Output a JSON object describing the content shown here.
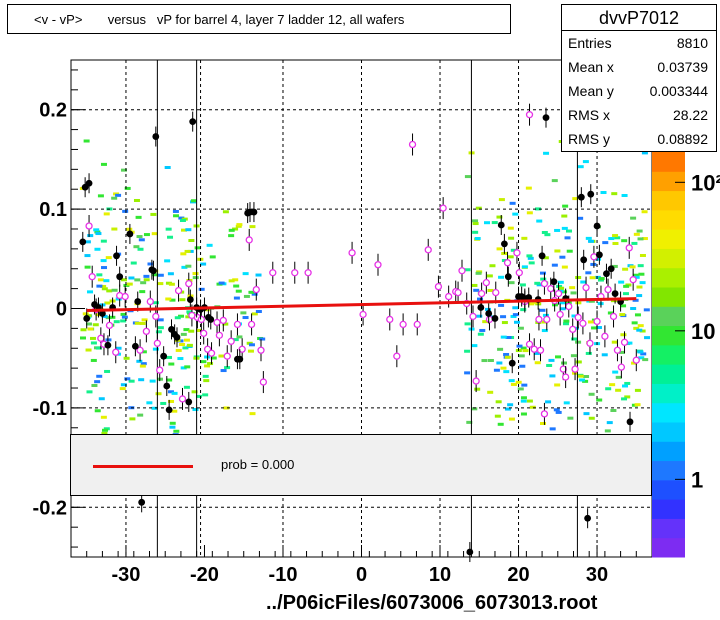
{
  "title": "<v - vP>       versus   vP for barrel 4, layer 7 ladder 12, all wafers",
  "stats": {
    "name": "dvvP7012",
    "rows": [
      {
        "label": "Entries",
        "value": "8810"
      },
      {
        "label": "Mean x",
        "value": "0.03739"
      },
      {
        "label": "Mean y",
        "value": "0.003344"
      },
      {
        "label": "RMS x",
        "value": "28.22"
      },
      {
        "label": "RMS y",
        "value": "0.08892"
      }
    ]
  },
  "legend": {
    "label": "prob = 0.000",
    "line_color": "#e8100e"
  },
  "footer": "../P06icFiles/6073006_6073013.root",
  "palette_labels": [
    {
      "text": "1",
      "value": 1
    },
    {
      "text": "10",
      "value": 10
    },
    {
      "text": "10²",
      "value": 100
    }
  ],
  "chart_data": {
    "type": "scatter",
    "title": "<v - vP>       versus   vP for barrel 4, layer 7 ladder 12, all wafers",
    "xlabel": "",
    "ylabel": "",
    "xlim": [
      -37,
      37
    ],
    "ylim": [
      -0.25,
      0.25
    ],
    "xticks": [
      -30,
      -20,
      -10,
      0,
      10,
      20,
      30
    ],
    "yticks": [
      -0.2,
      -0.1,
      0,
      0.1,
      0.2
    ],
    "xtick_labels": [
      "-30",
      "-20",
      "-10",
      "0",
      "10",
      "20",
      "30"
    ],
    "ytick_labels": [
      "-0.2",
      "-0.1",
      "0",
      "0.1",
      "0.2"
    ],
    "vertical_solid_lines_x": [
      -26,
      -21,
      14,
      27.5
    ],
    "vertical_dashed_lines_x": [
      -30,
      -20.5,
      -10,
      0,
      10,
      20,
      30
    ],
    "horizontal_dashed_lines_y": [
      0.2,
      0.1,
      -0.1,
      -0.2
    ],
    "fit_line": {
      "x": [
        -35,
        35
      ],
      "y": [
        -0.002,
        0.01
      ],
      "color": "#e8100e"
    },
    "filled_points": [
      [
        -35.5,
        0.067
      ],
      [
        -35.2,
        0.122
      ],
      [
        -34.7,
        0.126
      ],
      [
        -35,
        -0.01
      ],
      [
        -34,
        0.004
      ],
      [
        -33.5,
        0.001
      ],
      [
        -33,
        -0.005
      ],
      [
        -32.3,
        -0.037
      ],
      [
        -31.7,
        0.001
      ],
      [
        -31.2,
        0.053
      ],
      [
        -30.8,
        0.032
      ],
      [
        -29.5,
        0.075
      ],
      [
        -28.5,
        0.007
      ],
      [
        -28.8,
        -0.038
      ],
      [
        -26.5,
        0.038
      ],
      [
        -26.7,
        0.039
      ],
      [
        -26.2,
        0.173
      ],
      [
        -25.2,
        -0.048
      ],
      [
        -24.8,
        -0.078
      ],
      [
        -24.5,
        -0.102
      ],
      [
        -24.2,
        -0.021
      ],
      [
        -23.8,
        -0.026
      ],
      [
        -23.5,
        -0.029
      ],
      [
        -22,
        -0.094
      ],
      [
        -21.8,
        0.009
      ],
      [
        -21.5,
        0.188
      ],
      [
        -21,
        0.001
      ],
      [
        -20.5,
        -0.001
      ],
      [
        -20,
        0.001
      ],
      [
        -19.5,
        -0.009
      ],
      [
        -19.2,
        -0.011
      ],
      [
        -15.8,
        -0.051
      ],
      [
        -15.5,
        -0.051
      ],
      [
        -14.5,
        0.096
      ],
      [
        -14.2,
        0.097
      ],
      [
        -13.7,
        0.097
      ],
      [
        13.8,
        -0.245
      ],
      [
        15.2,
        0.001
      ],
      [
        16.2,
        -0.005
      ],
      [
        17,
        -0.01
      ],
      [
        17.8,
        0.084
      ],
      [
        18.2,
        0.065
      ],
      [
        18.7,
        0.032
      ],
      [
        19.2,
        -0.055
      ],
      [
        20,
        0.012
      ],
      [
        20.4,
        0.012
      ],
      [
        20.8,
        0.01
      ],
      [
        21.3,
        0.011
      ],
      [
        22.5,
        0.009
      ],
      [
        23,
        0.053
      ],
      [
        23.5,
        0.192
      ],
      [
        24.5,
        0.027
      ],
      [
        26,
        0.01
      ],
      [
        28,
        0.112
      ],
      [
        28.3,
        0.049
      ],
      [
        28.8,
        -0.211
      ],
      [
        29.2,
        0.115
      ],
      [
        30,
        0.083
      ],
      [
        30.3,
        0.054
      ],
      [
        31.2,
        0.035
      ],
      [
        31.8,
        0.04
      ],
      [
        32.3,
        0.015
      ],
      [
        33,
        0.007
      ],
      [
        34.2,
        -0.114
      ],
      [
        -28,
        -0.195
      ]
    ],
    "open_points": [
      [
        -34.7,
        0.083
      ],
      [
        -34.3,
        0.032
      ],
      [
        -33.8,
        -0.001
      ],
      [
        -33.2,
        -0.03
      ],
      [
        -32.8,
        -0.036
      ],
      [
        -32.1,
        -0.017
      ],
      [
        -31.3,
        -0.044
      ],
      [
        -30.8,
        0.013
      ],
      [
        -30.1,
        0.012
      ],
      [
        -28.2,
        -0.042
      ],
      [
        -27.4,
        -0.023
      ],
      [
        -26.9,
        0.007
      ],
      [
        -26.2,
        -0.008
      ],
      [
        -26,
        -0.035
      ],
      [
        -25.7,
        -0.062
      ],
      [
        -23.3,
        0.018
      ],
      [
        -22.8,
        -0.091
      ],
      [
        -22,
        0.025
      ],
      [
        -21.6,
        -0.007
      ],
      [
        -20.9,
        -0.009
      ],
      [
        -20.4,
        -0.011
      ],
      [
        -20.1,
        -0.025
      ],
      [
        -19.6,
        -0.041
      ],
      [
        -19.1,
        -0.045
      ],
      [
        -18.4,
        -0.014
      ],
      [
        -18.1,
        -0.027
      ],
      [
        -17.6,
        -0.012
      ],
      [
        -17.1,
        -0.048
      ],
      [
        -16.6,
        -0.033
      ],
      [
        -15.8,
        -0.016
      ],
      [
        -15.2,
        -0.041
      ],
      [
        -14.3,
        0.069
      ],
      [
        -14,
        -0.016
      ],
      [
        -13.4,
        0.019
      ],
      [
        -12.8,
        -0.042
      ],
      [
        -12.5,
        -0.074
      ],
      [
        -11.3,
        0.036
      ],
      [
        -8.5,
        0.036
      ],
      [
        -6.8,
        0.036
      ],
      [
        -1.2,
        0.056
      ],
      [
        0.2,
        -0.006
      ],
      [
        2.1,
        0.044
      ],
      [
        3.6,
        -0.011
      ],
      [
        4.5,
        -0.048
      ],
      [
        5.3,
        -0.016
      ],
      [
        6.5,
        0.165
      ],
      [
        7.1,
        -0.016
      ],
      [
        8.5,
        0.059
      ],
      [
        9.8,
        0.022
      ],
      [
        10.4,
        0.101
      ],
      [
        11.1,
        0.012
      ],
      [
        12,
        0.017
      ],
      [
        12.3,
        0.016
      ],
      [
        12.8,
        0.038
      ],
      [
        13.4,
        0.005
      ],
      [
        14.2,
        -0.008
      ],
      [
        14.6,
        -0.073
      ],
      [
        15.3,
        0.015
      ],
      [
        15.9,
        0.026
      ],
      [
        16.3,
        -0.011
      ],
      [
        17.1,
        0.016
      ],
      [
        18.6,
        0.046
      ],
      [
        19.8,
        0.056
      ],
      [
        20.1,
        0.036
      ],
      [
        20.8,
        0.007
      ],
      [
        21.4,
        -0.036
      ],
      [
        22,
        -0.041
      ],
      [
        22.6,
        -0.011
      ],
      [
        22.8,
        -0.042
      ],
      [
        23.3,
        0.025
      ],
      [
        23.6,
        -0.011
      ],
      [
        24.1,
        0.02
      ],
      [
        24.6,
        0.008
      ],
      [
        25.1,
        0.015
      ],
      [
        25.3,
        -0.006
      ],
      [
        25.7,
        -0.061
      ],
      [
        26,
        -0.069
      ],
      [
        26.4,
        0.002
      ],
      [
        26.9,
        -0.021
      ],
      [
        27.2,
        -0.061
      ],
      [
        27.6,
        -0.009
      ],
      [
        28.2,
        -0.015
      ],
      [
        28.6,
        0.021
      ],
      [
        29.1,
        -0.035
      ],
      [
        29.6,
        0.052
      ],
      [
        30,
        -0.013
      ],
      [
        30.5,
        0.012
      ],
      [
        31,
        -0.028
      ],
      [
        31.4,
        0.019
      ],
      [
        32.1,
        -0.008
      ],
      [
        32.6,
        -0.042
      ],
      [
        33.1,
        -0.059
      ],
      [
        33.5,
        -0.034
      ],
      [
        34.1,
        0.061
      ],
      [
        34.6,
        0.029
      ],
      [
        35,
        -0.052
      ],
      [
        21.4,
        0.195
      ],
      [
        23.3,
        -0.106
      ]
    ]
  }
}
